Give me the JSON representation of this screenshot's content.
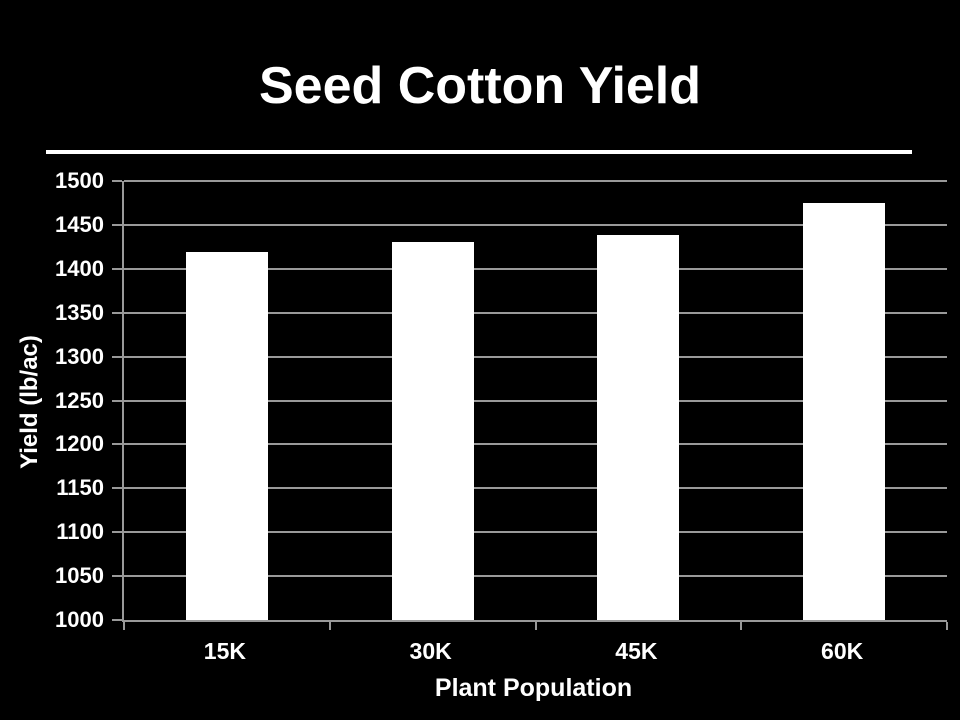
{
  "slide": {
    "title": "Seed Cotton Yield",
    "background_color": "#000000",
    "text_color": "#ffffff",
    "underline_color": "#ffffff"
  },
  "chart_data": {
    "type": "bar",
    "title": "Seed Cotton Yield",
    "categories": [
      "15K",
      "30K",
      "45K",
      "60K"
    ],
    "values": [
      1419,
      1430,
      1438,
      1475
    ],
    "xlabel": "Plant Population",
    "ylabel": "Yield (lb/ac)",
    "ylim": [
      1000,
      1500
    ],
    "ytick_step": 50,
    "grid": true,
    "legend": false,
    "bar_color": "#ffffff",
    "grid_color": "#999999",
    "axis_color": "#999999",
    "label_color": "#ffffff"
  }
}
